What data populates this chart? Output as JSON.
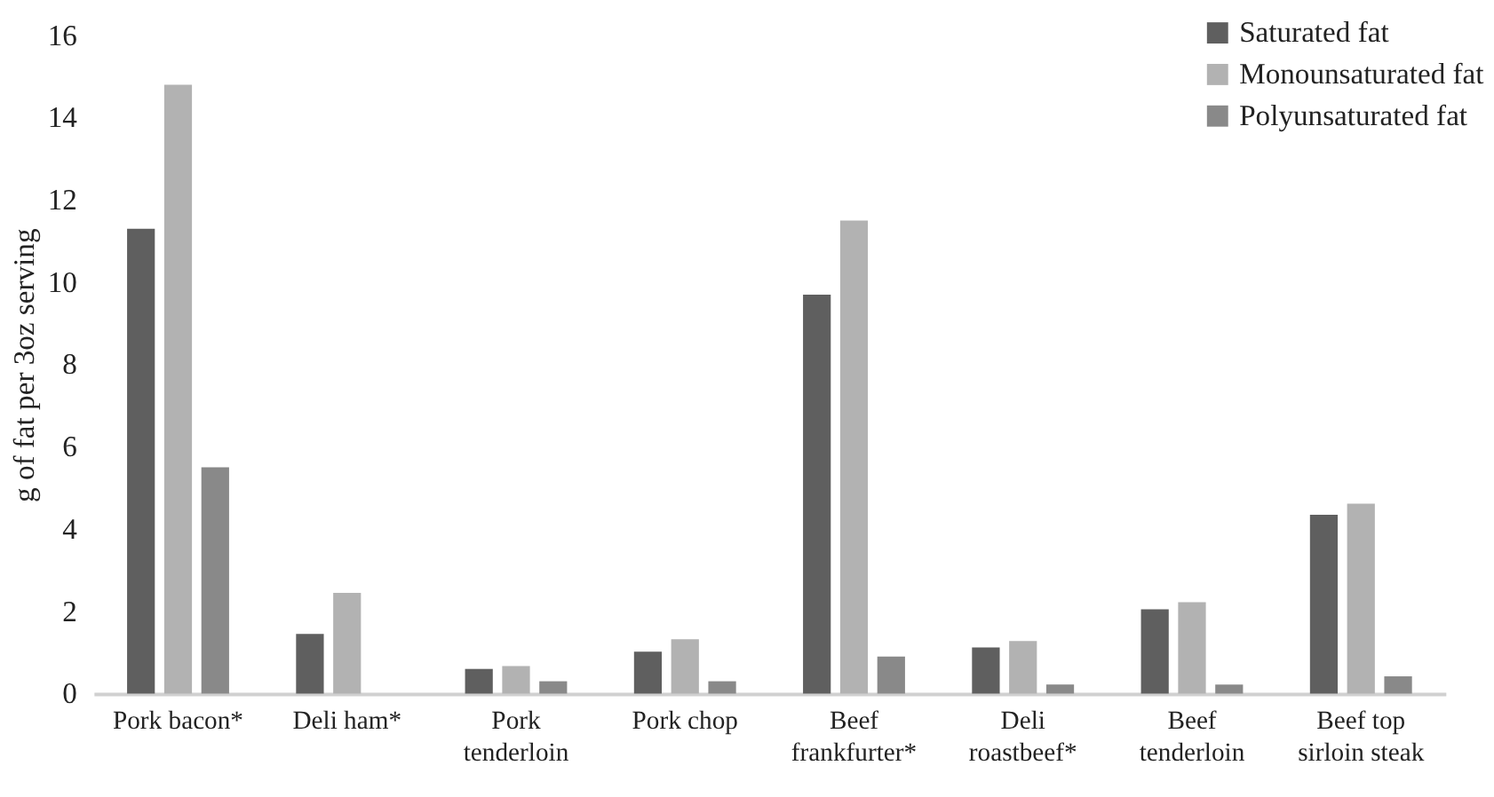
{
  "chart_data": {
    "type": "bar",
    "ylabel": "g of fat per 3oz serving",
    "categories": [
      "Pork bacon*",
      "Deli ham*",
      "Pork\ntenderloin",
      "Pork chop",
      "Beef\nfrankfurter*",
      "Deli\nroastbeef*",
      "Beef\ntenderloin",
      "Beef top\nsirloin steak"
    ],
    "series": [
      {
        "name": "Saturated fat",
        "color": "#5f5f5f",
        "values": [
          11.3,
          1.45,
          0.6,
          1.02,
          9.7,
          1.12,
          2.05,
          4.35
        ]
      },
      {
        "name": "Monounsaturated fat",
        "color": "#b2b2b2",
        "values": [
          14.8,
          2.45,
          0.67,
          1.32,
          11.5,
          1.28,
          2.22,
          4.62
        ]
      },
      {
        "name": "Polyunsaturated fat",
        "color": "#898989",
        "values": [
          5.5,
          0,
          0.3,
          0.3,
          0.9,
          0.22,
          0.22,
          0.42
        ]
      }
    ],
    "ylim": [
      0,
      16
    ],
    "yticks": [
      0,
      2,
      4,
      6,
      8,
      10,
      12,
      14,
      16
    ],
    "grid": false,
    "legend": "top right"
  }
}
